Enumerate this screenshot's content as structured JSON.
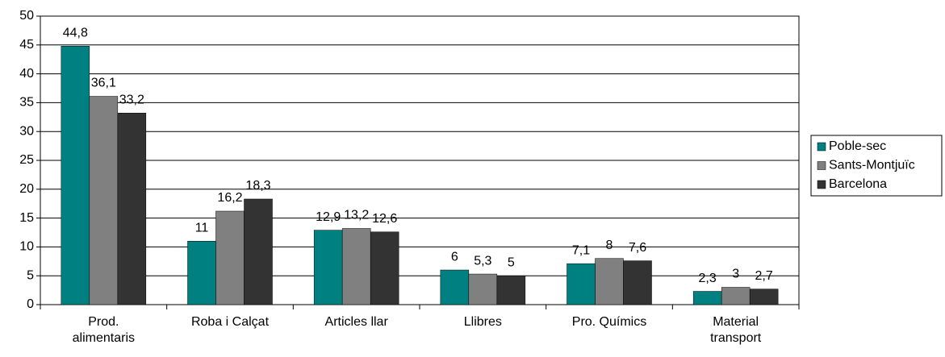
{
  "chart_data": {
    "type": "bar",
    "categories": [
      "Prod. alimentaris",
      "Roba i Calçat",
      "Articles llar",
      "Llibres",
      "Pro. Químics",
      "Material transport"
    ],
    "series": [
      {
        "name": "Poble-sec",
        "color": "#008080",
        "values": [
          44.8,
          11,
          12.9,
          6,
          7.1,
          2.3
        ],
        "value_labels": [
          "44,8",
          "11",
          "12,9",
          "6",
          "7,1",
          "2,3"
        ]
      },
      {
        "name": "Sants-Montjuïc",
        "color": "#808080",
        "values": [
          36.1,
          16.2,
          13.2,
          5.3,
          8,
          3
        ],
        "value_labels": [
          "36,1",
          "16,2",
          "13,2",
          "5,3",
          "8",
          "3"
        ]
      },
      {
        "name": "Barcelona",
        "color": "#333333",
        "values": [
          33.2,
          18.3,
          12.6,
          5,
          7.6,
          2.7
        ],
        "value_labels": [
          "33,2",
          "18,3",
          "12,6",
          "5",
          "7,6",
          "2,7"
        ]
      }
    ],
    "ylim": [
      0,
      50
    ],
    "yticks": [
      0,
      5,
      10,
      15,
      20,
      25,
      30,
      35,
      40,
      45,
      50
    ],
    "grid": true,
    "legend": "right"
  }
}
